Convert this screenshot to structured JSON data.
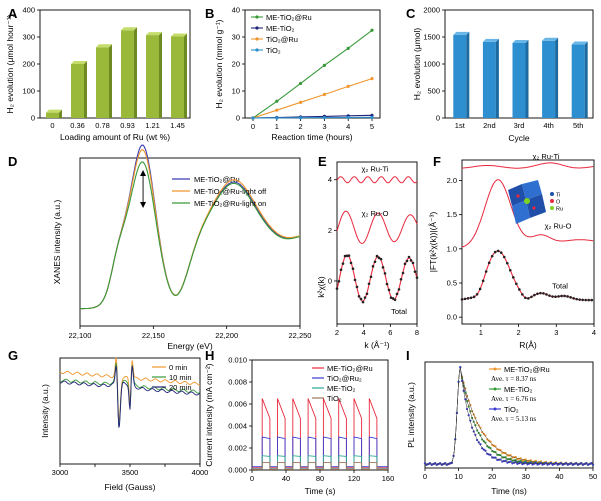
{
  "chart_data": [
    {
      "panel": "A",
      "type": "bar",
      "xlabel": "Loading amount of Ru (wt %)",
      "ylabel": "H₂ evolution (μmol hour⁻¹)",
      "categories": [
        "0",
        "0.36",
        "0.78",
        "0.93",
        "1.21",
        "1.45"
      ],
      "values": [
        20,
        200,
        262,
        325,
        307,
        302
      ],
      "ylim": [
        0,
        400
      ],
      "yticks": [
        "0",
        "100",
        "200",
        "300",
        "400"
      ],
      "bar_color": "#9ab83a"
    },
    {
      "panel": "B",
      "type": "line",
      "xlabel": "Reaction time (hours)",
      "ylabel": "H₂ evolution (mmol g⁻¹)",
      "x": [
        0,
        1,
        2,
        3,
        4,
        5
      ],
      "xlim": [
        0,
        5
      ],
      "ylim": [
        0,
        40
      ],
      "xticks": [
        "0",
        "1",
        "2",
        "3",
        "4",
        "5"
      ],
      "yticks": [
        "0",
        "10",
        "20",
        "30",
        "40"
      ],
      "series": [
        {
          "name": "ME-TiO₂@Ru",
          "color": "#3a9a3a",
          "values": [
            0,
            6.2,
            12.8,
            19.5,
            25.8,
            32.5
          ]
        },
        {
          "name": "ME-TiO₂",
          "color": "#23237a",
          "values": [
            0,
            0.2,
            0.4,
            0.6,
            0.8,
            1.0
          ]
        },
        {
          "name": "TiO₂@Ru",
          "color": "#f0962d",
          "values": [
            0,
            2.9,
            5.8,
            8.7,
            11.7,
            14.6
          ]
        },
        {
          "name": "TiO₂",
          "color": "#2a8fc8",
          "values": [
            0,
            0.05,
            0.1,
            0.15,
            0.2,
            0.25
          ]
        }
      ]
    },
    {
      "panel": "C",
      "type": "bar",
      "xlabel": "Cycle",
      "ylabel": "H₂ evolution (μmol)",
      "categories": [
        "1st",
        "2nd",
        "3rd",
        "4th",
        "5th"
      ],
      "values": [
        1540,
        1410,
        1390,
        1430,
        1360
      ],
      "ylim": [
        0,
        2000
      ],
      "yticks": [
        "0",
        "500",
        "1000",
        "1500",
        "2000"
      ],
      "bar_color": "#2d8fcf"
    },
    {
      "panel": "D",
      "type": "line",
      "xlabel": "Energy (eV)",
      "ylabel": "XANES intensity (a.u.)",
      "xticks": [
        "22,100",
        "22,150",
        "22,200",
        "22,250"
      ],
      "series": [
        {
          "name": "ME-TiO₂@Ru",
          "color": "#3b3bb2"
        },
        {
          "name": "ME-TiO₂@Ru-light off",
          "color": "#f0962d"
        },
        {
          "name": "ME-TiO₂@Ru-light on",
          "color": "#3a9a3a"
        }
      ]
    },
    {
      "panel": "E",
      "type": "line",
      "xlabel": "k (Å⁻¹)",
      "ylabel": "k²χ(k)",
      "xticks": [
        "2",
        "4",
        "6",
        "8"
      ],
      "yticks": [
        "0",
        "2",
        "4"
      ],
      "annotations": [
        "χ₂ Ru-Ti",
        "χ₂ Ru-O",
        "Total"
      ]
    },
    {
      "panel": "F",
      "type": "line",
      "xlabel": "R(Å)",
      "ylabel": "|FT(k²χ(k))|(Å⁻³)",
      "xticks": [
        "1",
        "2",
        "3",
        "4"
      ],
      "yticks": [
        "0.0",
        "0.5",
        "1.0",
        "1.5",
        "2.0"
      ],
      "annotations": [
        "χ₂ Ru-Ti",
        "χ₂ Ru-O",
        "Total"
      ],
      "inset_legend": [
        "Ti",
        "O",
        "Ru"
      ]
    },
    {
      "panel": "G",
      "type": "line",
      "xlabel": "Field (Gauss)",
      "ylabel": "Intensity (a.u.)",
      "xticks": [
        "3000",
        "3250",
        "3500",
        "3750",
        "4000"
      ],
      "series": [
        {
          "name": "0 min",
          "color": "#f0962d"
        },
        {
          "name": "10 min",
          "color": "#3a9a3a"
        },
        {
          "name": "20 min",
          "color": "#23237a"
        }
      ]
    },
    {
      "panel": "H",
      "type": "line",
      "xlabel": "Time (s)",
      "ylabel": "Current intensity (mA cm⁻²)",
      "xticks": [
        "0",
        "40",
        "80",
        "120",
        "160"
      ],
      "yticks": [
        "0.000",
        "0.002",
        "0.004",
        "0.006",
        "0.008",
        "0.010"
      ],
      "series": [
        {
          "name": "ME-TiO₂@Ru",
          "color": "#e8283c",
          "on": 0.0065,
          "off": 0.0002
        },
        {
          "name": "TiO₂@Ru₂",
          "color": "#3b3bd0",
          "on": 0.003,
          "off": 0.0003
        },
        {
          "name": "ME-TiO₂",
          "color": "#2aa89a",
          "on": 0.0013,
          "off": 0.0001
        },
        {
          "name": "TiO₂",
          "color": "#9a7a5a",
          "on": 0.0007,
          "off": 5e-05
        }
      ]
    },
    {
      "panel": "I",
      "type": "line",
      "xlabel": "Time (ns)",
      "ylabel": "PL intensity (a.u.)",
      "xticks": [
        "0",
        "10",
        "20",
        "30",
        "40",
        "50"
      ],
      "series": [
        {
          "name": "ME-TiO₂@Ru",
          "color": "#f0962d",
          "lifetime": "Ave. τ = 8.37 ns",
          "tau": 8.37
        },
        {
          "name": "ME-TiO₂",
          "color": "#3a9a3a",
          "lifetime": "Ave. τ = 6.76 ns",
          "tau": 6.76
        },
        {
          "name": "TiO₂",
          "color": "#3b3bd0",
          "lifetime": "Ave. τ = 5.13 ns",
          "tau": 5.13
        }
      ]
    }
  ],
  "panel_labels": [
    "A",
    "B",
    "C",
    "D",
    "E",
    "F",
    "G",
    "H",
    "I"
  ]
}
